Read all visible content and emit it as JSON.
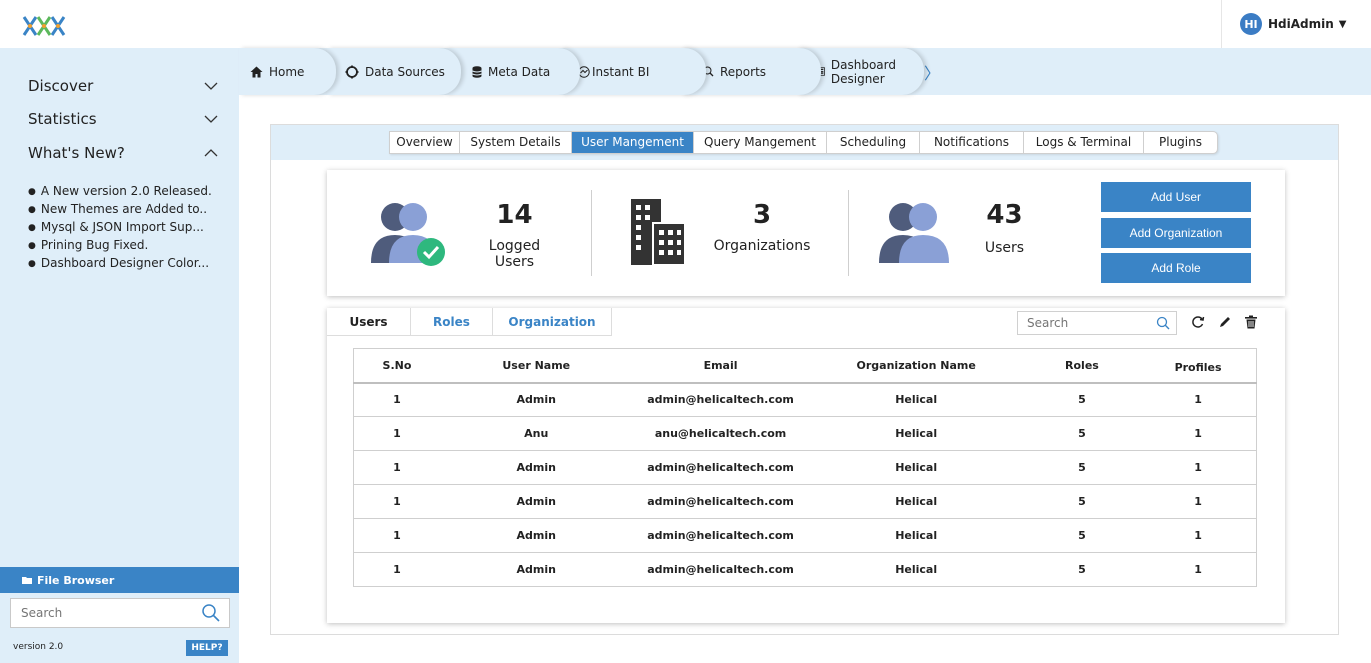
{
  "header": {
    "logo": "logo-icon",
    "user": {
      "initials": "HI",
      "name": "HdiAdmin"
    }
  },
  "sidebar": {
    "sections": [
      {
        "label": "Discover",
        "state": "collapsed"
      },
      {
        "label": "Statistics",
        "state": "collapsed"
      },
      {
        "label": "What's New?",
        "state": "expanded"
      }
    ],
    "news": [
      "A New version 2.0 Released.",
      "New Themes are Added to..",
      "Mysql & JSON Import Sup...",
      "Prining Bug Fixed.",
      "Dashboard Designer Color..."
    ],
    "file_browser": "File Browser",
    "search_placeholder": "Search",
    "version": "version 2.0",
    "help": "HELP?"
  },
  "nav": {
    "tabs": [
      {
        "label": "Home",
        "icon": "home-icon"
      },
      {
        "label": "Data Sources",
        "icon": "datasource-icon"
      },
      {
        "label": "Meta Data",
        "icon": "database-icon"
      },
      {
        "label": "Instant BI",
        "icon": "instant-bi-icon"
      },
      {
        "label": "Reports",
        "icon": "reports-icon"
      },
      {
        "label": "Dashboard Designer",
        "icon": "dashboard-icon"
      }
    ]
  },
  "subtabs": {
    "items": [
      "Overview",
      "System Details",
      "User Mangement",
      "Query Mangement",
      "Scheduling",
      "Notifications",
      "Logs & Terminal",
      "Plugins"
    ],
    "active": "User Mangement"
  },
  "stats": {
    "logged_users": {
      "value": "14",
      "label": "Logged Users"
    },
    "organizations": {
      "value": "3",
      "label": "Organizations"
    },
    "users": {
      "value": "43",
      "label": "Users"
    }
  },
  "actions": {
    "add_user": "Add User",
    "add_organization": "Add Organization",
    "add_role": "Add Role"
  },
  "list": {
    "tabs": [
      "Users",
      "Roles",
      "Organization"
    ],
    "active_tab": "Users",
    "search_placeholder": "Search",
    "columns": [
      "S.No",
      "User Name",
      "Email",
      "Organization Name",
      "Roles",
      "Profiles"
    ],
    "rows": [
      [
        "1",
        "Admin",
        "admin@helicaltech.com",
        "Helical",
        "5",
        "1"
      ],
      [
        "1",
        "Anu",
        "anu@helicaltech.com",
        "Helical",
        "5",
        "1"
      ],
      [
        "1",
        "Admin",
        "admin@helicaltech.com",
        "Helical",
        "5",
        "1"
      ],
      [
        "1",
        "Admin",
        "admin@helicaltech.com",
        "Helical",
        "5",
        "1"
      ],
      [
        "1",
        "Admin",
        "admin@helicaltech.com",
        "Helical",
        "5",
        "1"
      ],
      [
        "1",
        "Admin",
        "admin@helicaltech.com",
        "Helical",
        "5",
        "1"
      ]
    ]
  },
  "colors": {
    "accent": "#3a84c6",
    "sidebar_bg": "#dfeef9",
    "avatar_dark": "#4f5c7c",
    "avatar_light": "#8aa0d6",
    "check_green": "#2eb87e"
  }
}
